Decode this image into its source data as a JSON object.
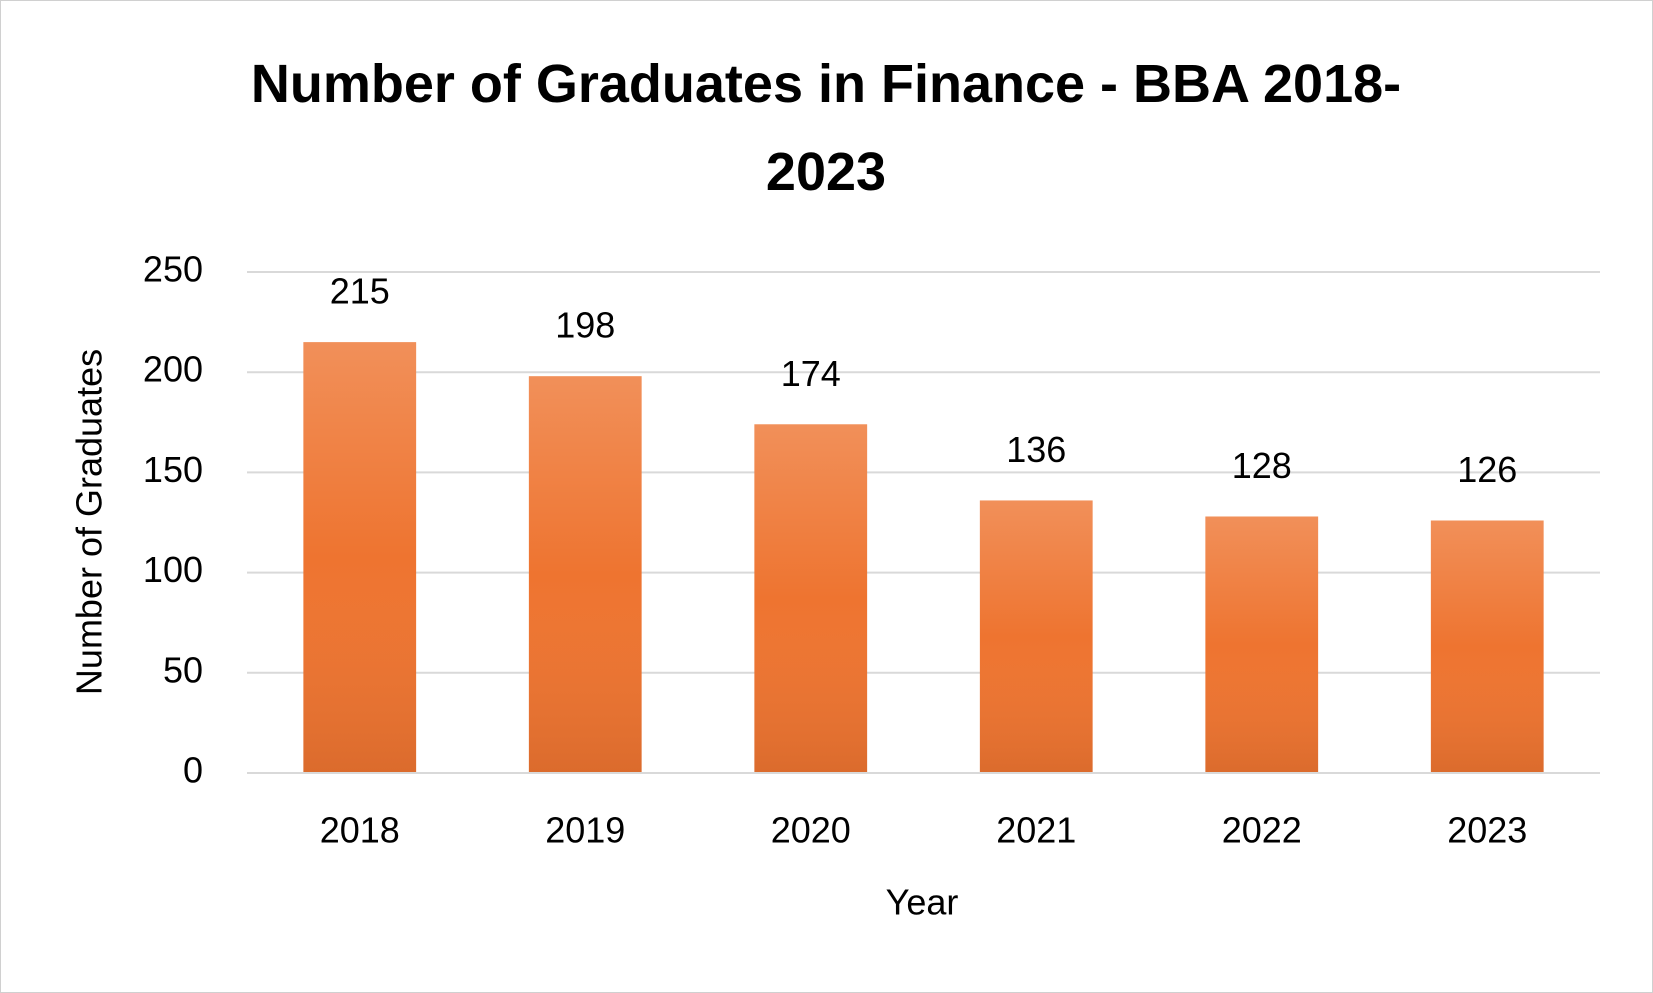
{
  "chart_data": {
    "type": "bar",
    "title": "Number of Graduates in Finance - BBA 2018-2023",
    "x_label": "Year",
    "y_label": "Number of Graduates",
    "categories": [
      "2018",
      "2019",
      "2020",
      "2021",
      "2022",
      "2023"
    ],
    "values": [
      215,
      198,
      174,
      136,
      128,
      126
    ],
    "color": "#ee7430",
    "ylim": [
      0,
      250
    ],
    "yticks": [
      0,
      50,
      100,
      150,
      200,
      250
    ],
    "grid": true
  }
}
